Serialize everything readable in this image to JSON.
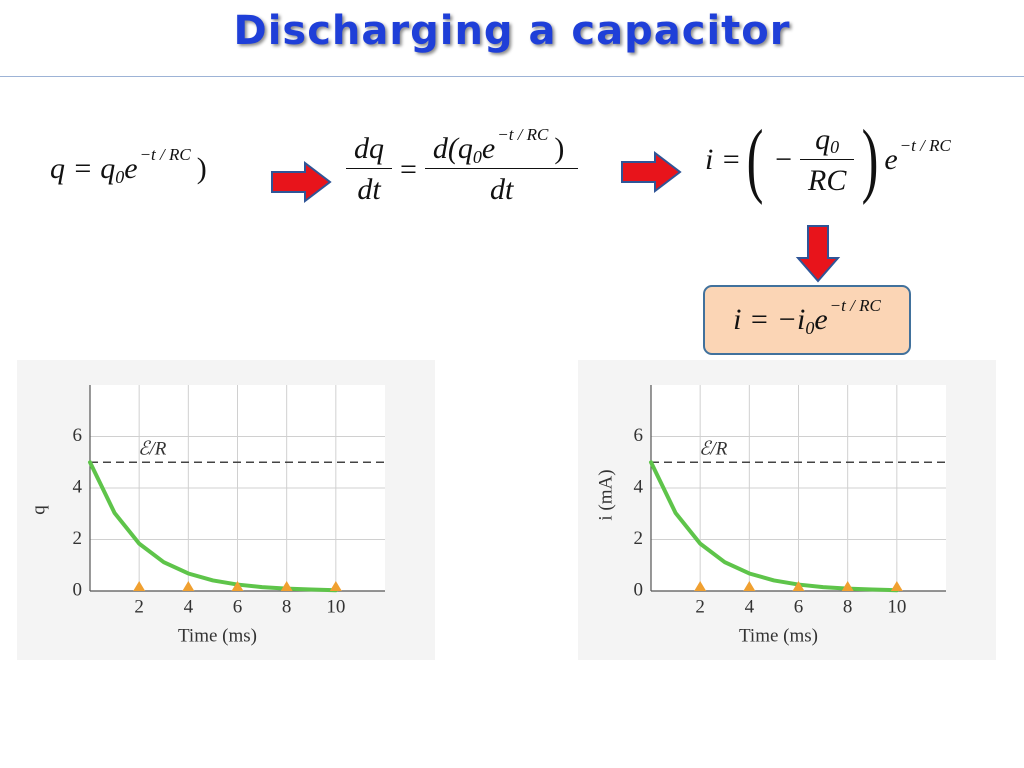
{
  "title": "Discharging a capacitor",
  "equations": {
    "charge": {
      "main": "q = q",
      "sub": "0",
      "base": "e",
      "exp": "−t / RC",
      "tail": ")"
    },
    "derivative": {
      "lhs_num": "dq",
      "lhs_den": "dt",
      "eq": "=",
      "rhs_num": "d(q",
      "rhs_sub": "0",
      "rhs_base": "e",
      "rhs_exp": "−t / RC",
      "rhs_tail": ")",
      "rhs_den": "dt"
    },
    "current": {
      "lhs": "i =",
      "open": "(",
      "minus": "−",
      "num": "q",
      "num_sub": "0",
      "den": "RC",
      "close": ")",
      "base": "e",
      "exp": "−t / RC"
    },
    "result": {
      "main": "i = −i",
      "sub": "0",
      "base": "e",
      "exp": "−t / RC"
    }
  },
  "chart_data": [
    {
      "type": "line",
      "ylabel": "q",
      "xlabel": "Time (ms)",
      "x": [
        0,
        1,
        2,
        3,
        4,
        5,
        6,
        7,
        8,
        9,
        10
      ],
      "series": [
        {
          "color": "#5ec44a",
          "values": [
            5,
            3.03,
            1.84,
            1.12,
            0.68,
            0.41,
            0.25,
            0.15,
            0.09,
            0.06,
            0.03
          ]
        }
      ],
      "reference": {
        "value": 5,
        "label": "ℰ/R"
      },
      "markers": {
        "color": "#f0a030",
        "x": [
          2,
          4,
          6,
          8,
          10
        ]
      },
      "xlim": [
        0,
        12
      ],
      "ylim": [
        0,
        8
      ],
      "xticks": [
        2,
        4,
        6,
        8,
        10
      ],
      "yticks": [
        0,
        2,
        4,
        6
      ],
      "grid": true
    },
    {
      "type": "line",
      "ylabel": "i (mA)",
      "xlabel": "Time (ms)",
      "x": [
        0,
        1,
        2,
        3,
        4,
        5,
        6,
        7,
        8,
        9,
        10
      ],
      "series": [
        {
          "color": "#5ec44a",
          "values": [
            5,
            3.03,
            1.84,
            1.12,
            0.68,
            0.41,
            0.25,
            0.15,
            0.09,
            0.06,
            0.03
          ]
        }
      ],
      "reference": {
        "value": 5,
        "label": "ℰ/R"
      },
      "markers": {
        "color": "#f0a030",
        "x": [
          2,
          4,
          6,
          8,
          10
        ]
      },
      "xlim": [
        0,
        12
      ],
      "ylim": [
        0,
        8
      ],
      "xticks": [
        2,
        4,
        6,
        8,
        10
      ],
      "yticks": [
        0,
        2,
        4,
        6
      ],
      "grid": true
    }
  ]
}
